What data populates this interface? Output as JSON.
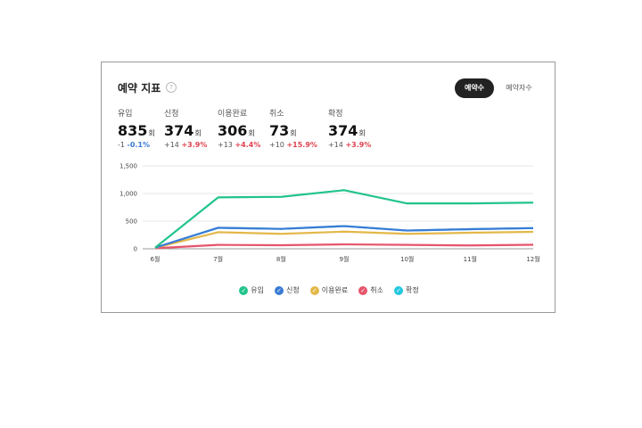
{
  "widget": {
    "title": "예약 지표",
    "help_icon": "?",
    "toggle_active": "예약수",
    "toggle_inactive": "예약자수"
  },
  "stats": [
    {
      "label": "유입",
      "value": "835",
      "unit": "회",
      "delta": "-1",
      "pct": "-0.1%",
      "pct_sign": "neg"
    },
    {
      "label": "신청",
      "value": "374",
      "unit": "회",
      "delta": "+14",
      "pct": "+3.9%",
      "pct_sign": "pos"
    },
    {
      "label": "이용완료",
      "value": "306",
      "unit": "회",
      "delta": "+13",
      "pct": "+4.4%",
      "pct_sign": "pos"
    },
    {
      "label": "취소",
      "value": "73",
      "unit": "회",
      "delta": "+10",
      "pct": "+15.9%",
      "pct_sign": "pos"
    },
    {
      "label": "확정",
      "value": "374",
      "unit": "회",
      "delta": "+14",
      "pct": "+3.9%",
      "pct_sign": "pos"
    }
  ],
  "chart_data": {
    "type": "line",
    "categories": [
      "6월",
      "7월",
      "8월",
      "9월",
      "10월",
      "11월",
      "12월"
    ],
    "y_ticks": [
      "0",
      "500",
      "1,000",
      "1,500"
    ],
    "ylim": [
      0,
      1500
    ],
    "grid": true,
    "legend_position": "bottom",
    "series": [
      {
        "name": "유입",
        "color": "#22c48a",
        "values": [
          20,
          930,
          940,
          1060,
          820,
          820,
          835
        ]
      },
      {
        "name": "신청",
        "color": "#3a7bd5",
        "values": [
          20,
          380,
          360,
          410,
          330,
          355,
          374
        ]
      },
      {
        "name": "이용완료",
        "color": "#e3b84a",
        "values": [
          20,
          300,
          270,
          310,
          270,
          290,
          306
        ]
      },
      {
        "name": "취소",
        "color": "#e5556b",
        "values": [
          10,
          70,
          65,
          80,
          70,
          60,
          73
        ]
      },
      {
        "name": "확정",
        "color": "#22c8e0",
        "values": [
          20,
          380,
          360,
          410,
          330,
          355,
          374
        ]
      }
    ]
  }
}
